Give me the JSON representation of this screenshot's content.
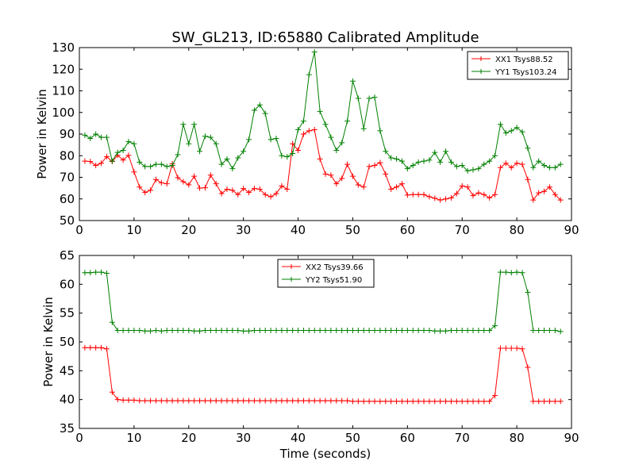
{
  "figure": {
    "title": "SW_GL213, ID:65880 Calibrated Amplitude"
  },
  "chart_data": [
    {
      "type": "line",
      "xlabel": "",
      "ylabel": "Power in Kelvin",
      "xlim": [
        0,
        90
      ],
      "ylim": [
        50,
        130
      ],
      "xticks": [
        0,
        10,
        20,
        30,
        40,
        50,
        60,
        70,
        80,
        90
      ],
      "yticks": [
        50,
        60,
        70,
        80,
        90,
        100,
        110,
        120,
        130
      ],
      "legend_position": "top-right",
      "series": [
        {
          "name": "XX1 Tsys88.52",
          "color": "#ff0000",
          "x": [
            1,
            2,
            3,
            4,
            5,
            6,
            7,
            8,
            9,
            10,
            11,
            12,
            13,
            14,
            15,
            16,
            17,
            18,
            19,
            20,
            21,
            22,
            23,
            24,
            25,
            26,
            27,
            28,
            29,
            30,
            31,
            32,
            33,
            34,
            35,
            36,
            37,
            38,
            39,
            40,
            41,
            42,
            43,
            44,
            45,
            46,
            47,
            48,
            49,
            50,
            51,
            52,
            53,
            54,
            55,
            56,
            57,
            58,
            59,
            60,
            61,
            62,
            63,
            64,
            65,
            66,
            67,
            68,
            69,
            70,
            71,
            72,
            73,
            74,
            75,
            76,
            77,
            78,
            79,
            80,
            81,
            82,
            83,
            84,
            85,
            86,
            87,
            88
          ],
          "y": [
            77.5,
            77.3,
            75.5,
            76.5,
            79.6,
            77.3,
            80.2,
            78.0,
            80.2,
            72.5,
            65.5,
            63.0,
            64.0,
            69.0,
            67.5,
            67.0,
            76.3,
            69.8,
            68.0,
            66.5,
            70.5,
            65.0,
            65.2,
            71.0,
            67.0,
            62.5,
            64.5,
            64.0,
            62.0,
            64.8,
            63.0,
            64.8,
            64.5,
            62.0,
            61.0,
            62.5,
            66.0,
            64.5,
            85.5,
            82.5,
            90.0,
            91.5,
            92.0,
            78.5,
            71.5,
            71.0,
            67.0,
            69.5,
            76.0,
            70.5,
            66.5,
            65.5,
            75.0,
            75.5,
            76.8,
            71.5,
            64.5,
            65.5,
            67.0,
            61.8,
            62.0,
            62.0,
            62.0,
            61.0,
            60.3,
            59.5,
            60.0,
            60.5,
            62.5,
            66.0,
            65.5,
            61.5,
            62.8,
            62.0,
            60.5,
            62.0,
            74.5,
            76.5,
            74.5,
            76.5,
            76.0,
            69.0,
            59.5,
            62.8,
            63.5,
            65.5,
            62.0,
            59.5
          ]
        },
        {
          "name": "YY1 Tsys103.24",
          "color": "#008000",
          "x": [
            1,
            2,
            3,
            4,
            5,
            6,
            7,
            8,
            9,
            10,
            11,
            12,
            13,
            14,
            15,
            16,
            17,
            18,
            19,
            20,
            21,
            22,
            23,
            24,
            25,
            26,
            27,
            28,
            29,
            30,
            31,
            32,
            33,
            34,
            35,
            36,
            37,
            38,
            39,
            40,
            41,
            42,
            43,
            44,
            45,
            46,
            47,
            48,
            49,
            50,
            51,
            52,
            53,
            54,
            55,
            56,
            57,
            58,
            59,
            60,
            61,
            62,
            63,
            64,
            65,
            66,
            67,
            68,
            69,
            70,
            71,
            72,
            73,
            74,
            75,
            76,
            77,
            78,
            79,
            80,
            81,
            82,
            83,
            84,
            85,
            86,
            87,
            88
          ],
          "y": [
            89.5,
            88.0,
            90.0,
            88.5,
            88.5,
            77.5,
            81.5,
            82.5,
            86.5,
            85.5,
            77.0,
            75.0,
            75.0,
            76.0,
            76.0,
            75.0,
            75.5,
            80.5,
            94.5,
            85.5,
            94.5,
            82.0,
            89.0,
            88.5,
            85.5,
            76.0,
            78.5,
            74.0,
            79.0,
            82.0,
            87.5,
            101.0,
            103.5,
            99.5,
            87.5,
            88.0,
            80.0,
            79.5,
            81.0,
            92.0,
            96.0,
            117.5,
            128.0,
            100.5,
            94.5,
            88.5,
            82.5,
            86.0,
            96.0,
            114.5,
            106.5,
            92.5,
            106.5,
            107.0,
            91.5,
            82.0,
            79.0,
            78.5,
            77.5,
            74.0,
            75.5,
            77.0,
            77.5,
            78.0,
            81.5,
            77.0,
            82.0,
            77.0,
            75.0,
            75.5,
            73.0,
            73.5,
            74.0,
            76.0,
            77.5,
            80.0,
            94.5,
            90.5,
            91.5,
            93.0,
            91.0,
            83.5,
            74.5,
            77.5,
            75.5,
            74.5,
            74.5,
            76.0
          ]
        }
      ]
    },
    {
      "type": "line",
      "xlabel": "Time (seconds)",
      "ylabel": "Power in Kelvin",
      "xlim": [
        0,
        90
      ],
      "ylim": [
        35,
        65
      ],
      "xticks": [
        0,
        10,
        20,
        30,
        40,
        50,
        60,
        70,
        80,
        90
      ],
      "yticks": [
        35,
        40,
        45,
        50,
        55,
        60,
        65
      ],
      "legend_position": "top-center",
      "series": [
        {
          "name": "XX2 Tsys39.66",
          "color": "#ff0000",
          "x": [
            1,
            2,
            3,
            4,
            5,
            6,
            7,
            8,
            9,
            10,
            11,
            12,
            13,
            14,
            15,
            16,
            17,
            18,
            19,
            20,
            21,
            22,
            23,
            24,
            25,
            26,
            27,
            28,
            29,
            30,
            31,
            32,
            33,
            34,
            35,
            36,
            37,
            38,
            39,
            40,
            41,
            42,
            43,
            44,
            45,
            46,
            47,
            48,
            49,
            50,
            51,
            52,
            53,
            54,
            55,
            56,
            57,
            58,
            59,
            60,
            61,
            62,
            63,
            64,
            65,
            66,
            67,
            68,
            69,
            70,
            71,
            72,
            73,
            74,
            75,
            76,
            77,
            78,
            79,
            80,
            81,
            82,
            83,
            84,
            85,
            86,
            87,
            88
          ],
          "y": [
            49.0,
            49.0,
            49.0,
            49.0,
            48.8,
            41.3,
            40.0,
            39.9,
            39.9,
            39.9,
            39.8,
            39.8,
            39.8,
            39.8,
            39.8,
            39.8,
            39.8,
            39.8,
            39.8,
            39.8,
            39.8,
            39.8,
            39.8,
            39.8,
            39.8,
            39.8,
            39.8,
            39.8,
            39.8,
            39.8,
            39.8,
            39.8,
            39.8,
            39.8,
            39.8,
            39.8,
            39.8,
            39.8,
            39.8,
            39.8,
            39.8,
            39.8,
            39.8,
            39.8,
            39.8,
            39.8,
            39.8,
            39.8,
            39.8,
            39.7,
            39.7,
            39.7,
            39.7,
            39.7,
            39.7,
            39.7,
            39.7,
            39.7,
            39.7,
            39.7,
            39.7,
            39.7,
            39.7,
            39.7,
            39.7,
            39.7,
            39.7,
            39.7,
            39.7,
            39.7,
            39.7,
            39.7,
            39.7,
            39.7,
            39.7,
            40.7,
            48.9,
            48.9,
            48.9,
            48.9,
            48.8,
            45.6,
            39.7,
            39.7,
            39.7,
            39.7,
            39.7,
            39.7
          ]
        },
        {
          "name": "YY2 Tsys51.90",
          "color": "#008000",
          "x": [
            1,
            2,
            3,
            4,
            5,
            6,
            7,
            8,
            9,
            10,
            11,
            12,
            13,
            14,
            15,
            16,
            17,
            18,
            19,
            20,
            21,
            22,
            23,
            24,
            25,
            26,
            27,
            28,
            29,
            30,
            31,
            32,
            33,
            34,
            35,
            36,
            37,
            38,
            39,
            40,
            41,
            42,
            43,
            44,
            45,
            46,
            47,
            48,
            49,
            50,
            51,
            52,
            53,
            54,
            55,
            56,
            57,
            58,
            59,
            60,
            61,
            62,
            63,
            64,
            65,
            66,
            67,
            68,
            69,
            70,
            71,
            72,
            73,
            74,
            75,
            76,
            77,
            78,
            79,
            80,
            81,
            82,
            83,
            84,
            85,
            86,
            87,
            88
          ],
          "y": [
            62.0,
            62.0,
            62.1,
            62.1,
            61.9,
            53.4,
            52.0,
            52.0,
            52.0,
            52.0,
            52.0,
            51.9,
            51.9,
            52.0,
            51.9,
            52.0,
            52.0,
            52.0,
            52.0,
            52.0,
            51.9,
            51.9,
            52.0,
            52.0,
            52.0,
            52.0,
            52.0,
            52.0,
            52.0,
            51.9,
            51.9,
            52.0,
            52.0,
            52.0,
            52.0,
            52.0,
            52.0,
            52.0,
            52.0,
            52.0,
            52.0,
            52.0,
            52.0,
            52.0,
            52.0,
            52.0,
            52.0,
            52.0,
            52.0,
            52.0,
            52.0,
            52.0,
            52.0,
            52.0,
            52.0,
            52.0,
            52.0,
            52.0,
            52.0,
            52.0,
            52.0,
            52.0,
            52.0,
            52.0,
            51.9,
            51.9,
            51.9,
            52.0,
            52.0,
            52.0,
            52.0,
            52.0,
            52.0,
            52.0,
            52.0,
            52.8,
            62.1,
            62.1,
            62.0,
            62.1,
            62.0,
            58.6,
            52.0,
            52.0,
            52.0,
            52.0,
            52.0,
            51.8
          ]
        }
      ]
    }
  ]
}
